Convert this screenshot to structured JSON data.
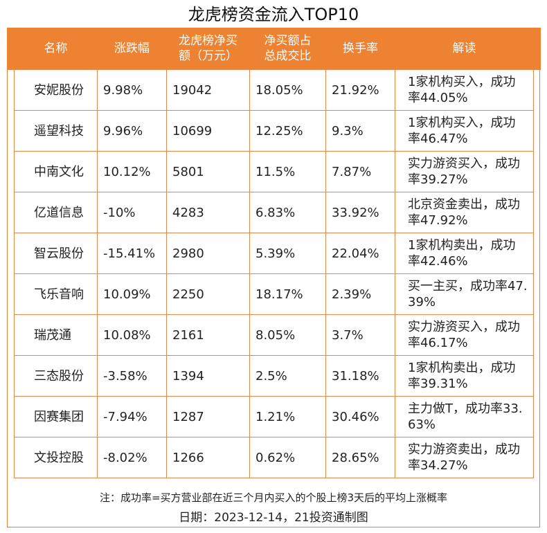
{
  "title": "龙虎榜资金流入TOP10",
  "headers": {
    "name": "名称",
    "change": "涨跌幅",
    "net_buy_line1": "龙虎榜净买",
    "net_buy_line2": "额（万元）",
    "ratio_line1": "净买额占",
    "ratio_line2": "总成交比",
    "turnover": "换手率",
    "interpretation": "解读"
  },
  "rows": [
    {
      "name": "安妮股份",
      "change": "9.98%",
      "net_buy": "19042",
      "ratio": "18.05%",
      "turnover": "21.92%",
      "interpretation": "1家机构买入，成功率44.05%"
    },
    {
      "name": "遥望科技",
      "change": "9.96%",
      "net_buy": "10699",
      "ratio": "12.25%",
      "turnover": "9.3%",
      "interpretation": "1家机构买入，成功率46.47%"
    },
    {
      "name": "中南文化",
      "change": "10.12%",
      "net_buy": "5801",
      "ratio": "11.5%",
      "turnover": "7.87%",
      "interpretation": "实力游资买入，成功率39.27%"
    },
    {
      "name": "亿道信息",
      "change": "-10%",
      "net_buy": "4283",
      "ratio": "6.83%",
      "turnover": "33.92%",
      "interpretation": "北京资金卖出，成功率47.92%"
    },
    {
      "name": "智云股份",
      "change": "-15.41%",
      "net_buy": "2980",
      "ratio": "5.39%",
      "turnover": "22.04%",
      "interpretation": "1家机构卖出，成功率42.46%"
    },
    {
      "name": "飞乐音响",
      "change": "10.09%",
      "net_buy": "2250",
      "ratio": "18.17%",
      "turnover": "2.39%",
      "interpretation": "买一主买，成功率47.39%"
    },
    {
      "name": "瑞茂通",
      "change": "10.08%",
      "net_buy": "2161",
      "ratio": "8.05%",
      "turnover": "3.7%",
      "interpretation": "实力游资买入，成功率46.17%"
    },
    {
      "name": "三态股份",
      "change": "-3.58%",
      "net_buy": "1394",
      "ratio": "2.5%",
      "turnover": "31.18%",
      "interpretation": "1家机构卖出，成功率39.31%"
    },
    {
      "name": "因赛集团",
      "change": "-7.94%",
      "net_buy": "1287",
      "ratio": "1.21%",
      "turnover": "30.46%",
      "interpretation": "主力做T，成功率33.63%"
    },
    {
      "name": "文投控股",
      "change": "-8.02%",
      "net_buy": "1266",
      "ratio": "0.62%",
      "turnover": "28.65%",
      "interpretation": "实力游资卖出，成功率34.27%"
    }
  ],
  "footer": {
    "note": "注：成功率=买方营业部在近三个月内买入的个股上榜3天后的平均上涨概率",
    "date": "日期：2023-12-14，21投资通制图"
  },
  "colors": {
    "header_bg": "#ec8232",
    "border": "#e3884b"
  }
}
